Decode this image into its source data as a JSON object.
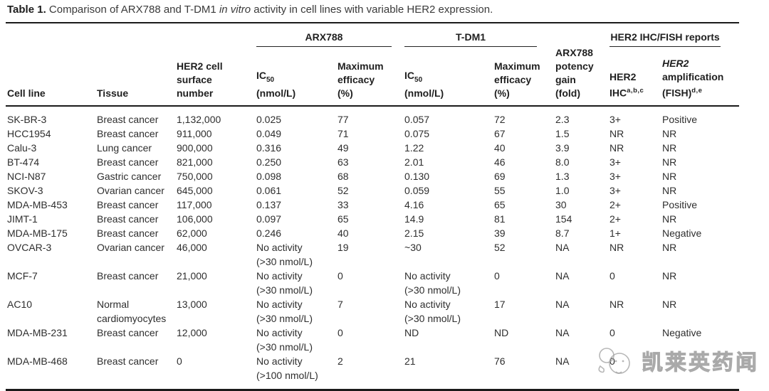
{
  "caption": {
    "label": "Table 1.",
    "pre": " Comparison of ARX788 and T-DM1 ",
    "italic": "in vitro",
    "post": " activity in cell lines with variable HER2 expression."
  },
  "header": {
    "groups": {
      "arx788": "ARX788",
      "tdm1": "T-DM1",
      "ihc_fish": "HER2 IHC/FISH reports"
    },
    "cols": {
      "cell_line": "Cell line",
      "tissue": "Tissue",
      "her2_surface": "HER2 cell\nsurface\nnumber",
      "ic50_prefix": "IC",
      "ic50_sub": "50",
      "ic50_unit": "(nmol/L)",
      "max_efficacy": "Maximum\nefficacy\n(%)",
      "potency_gain": "ARX788\npotency\ngain\n(fold)",
      "ihc_line1": "HER2",
      "ihc_line2": "IHC",
      "ihc_sup": "a,b,c",
      "fish_line1": "HER2",
      "fish_line2": "amplification",
      "fish_line3": "(FISH)",
      "fish_sup": "d,e"
    }
  },
  "rows": [
    {
      "cell_line": "SK-BR-3",
      "tissue": "Breast cancer",
      "her2_number": "1,132,000",
      "arx788_ic50": "0.025",
      "arx788_max_efficacy": "77",
      "tdm1_ic50": "0.057",
      "tdm1_max_efficacy": "72",
      "potency_gain": "2.3",
      "her2_ihc": "3+",
      "her2_fish": "Positive"
    },
    {
      "cell_line": "HCC1954",
      "tissue": "Breast cancer",
      "her2_number": "911,000",
      "arx788_ic50": "0.049",
      "arx788_max_efficacy": "71",
      "tdm1_ic50": "0.075",
      "tdm1_max_efficacy": "67",
      "potency_gain": "1.5",
      "her2_ihc": "NR",
      "her2_fish": "NR"
    },
    {
      "cell_line": "Calu-3",
      "tissue": "Lung cancer",
      "her2_number": "900,000",
      "arx788_ic50": "0.316",
      "arx788_max_efficacy": "49",
      "tdm1_ic50": "1.22",
      "tdm1_max_efficacy": "40",
      "potency_gain": "3.9",
      "her2_ihc": "NR",
      "her2_fish": "NR"
    },
    {
      "cell_line": "BT-474",
      "tissue": "Breast cancer",
      "her2_number": "821,000",
      "arx788_ic50": "0.250",
      "arx788_max_efficacy": "63",
      "tdm1_ic50": "2.01",
      "tdm1_max_efficacy": "46",
      "potency_gain": "8.0",
      "her2_ihc": "3+",
      "her2_fish": "NR"
    },
    {
      "cell_line": "NCI-N87",
      "tissue": "Gastric cancer",
      "her2_number": "750,000",
      "arx788_ic50": "0.098",
      "arx788_max_efficacy": "68",
      "tdm1_ic50": "0.130",
      "tdm1_max_efficacy": "69",
      "potency_gain": "1.3",
      "her2_ihc": "3+",
      "her2_fish": "NR"
    },
    {
      "cell_line": "SKOV-3",
      "tissue": "Ovarian cancer",
      "her2_number": "645,000",
      "arx788_ic50": "0.061",
      "arx788_max_efficacy": "52",
      "tdm1_ic50": "0.059",
      "tdm1_max_efficacy": "55",
      "potency_gain": "1.0",
      "her2_ihc": "3+",
      "her2_fish": "NR"
    },
    {
      "cell_line": "MDA-MB-453",
      "tissue": "Breast cancer",
      "her2_number": "117,000",
      "arx788_ic50": "0.137",
      "arx788_max_efficacy": "33",
      "tdm1_ic50": "4.16",
      "tdm1_max_efficacy": "65",
      "potency_gain": "30",
      "her2_ihc": "2+",
      "her2_fish": "Positive"
    },
    {
      "cell_line": "JIMT-1",
      "tissue": "Breast cancer",
      "her2_number": "106,000",
      "arx788_ic50": "0.097",
      "arx788_max_efficacy": "65",
      "tdm1_ic50": "14.9",
      "tdm1_max_efficacy": "81",
      "potency_gain": "154",
      "her2_ihc": "2+",
      "her2_fish": "NR"
    },
    {
      "cell_line": "MDA-MB-175",
      "tissue": "Breast cancer",
      "her2_number": "62,000",
      "arx788_ic50": "0.246",
      "arx788_max_efficacy": "40",
      "tdm1_ic50": "2.15",
      "tdm1_max_efficacy": "39",
      "potency_gain": "8.7",
      "her2_ihc": "1+",
      "her2_fish": "Negative"
    },
    {
      "cell_line": "OVCAR-3",
      "tissue": "Ovarian cancer",
      "her2_number": "46,000",
      "arx788_ic50": "No activity\n(>30 nmol/L)",
      "arx788_max_efficacy": "19",
      "tdm1_ic50": "~30",
      "tdm1_max_efficacy": "52",
      "potency_gain": "NA",
      "her2_ihc": "NR",
      "her2_fish": "NR"
    },
    {
      "cell_line": "MCF-7",
      "tissue": "Breast cancer",
      "her2_number": "21,000",
      "arx788_ic50": "No activity\n(>30 nmol/L)",
      "arx788_max_efficacy": "0",
      "tdm1_ic50": "No activity\n(>30 nmol/L)",
      "tdm1_max_efficacy": "0",
      "potency_gain": "NA",
      "her2_ihc": "0",
      "her2_fish": "NR"
    },
    {
      "cell_line": "AC10",
      "tissue": "Normal\ncardiomyocytes",
      "her2_number": "13,000",
      "arx788_ic50": "No activity\n(>30 nmol/L)",
      "arx788_max_efficacy": "7",
      "tdm1_ic50": "No activity\n(>30 nmol/L)",
      "tdm1_max_efficacy": "17",
      "potency_gain": "NA",
      "her2_ihc": "NR",
      "her2_fish": "NR"
    },
    {
      "cell_line": "MDA-MB-231",
      "tissue": "Breast cancer",
      "her2_number": "12,000",
      "arx788_ic50": "No activity\n(>30 nmol/L)",
      "arx788_max_efficacy": "0",
      "tdm1_ic50": "ND",
      "tdm1_max_efficacy": "ND",
      "potency_gain": "NA",
      "her2_ihc": "0",
      "her2_fish": "Negative"
    },
    {
      "cell_line": "MDA-MB-468",
      "tissue": "Breast cancer",
      "her2_number": "0",
      "arx788_ic50": "No activity\n(>100 nmol/L)",
      "arx788_max_efficacy": "2",
      "tdm1_ic50": "21",
      "tdm1_max_efficacy": "76",
      "potency_gain": "NA",
      "her2_ihc": "0",
      "her2_fish": ""
    }
  ],
  "watermark": {
    "text": "凯莱英药闻"
  }
}
